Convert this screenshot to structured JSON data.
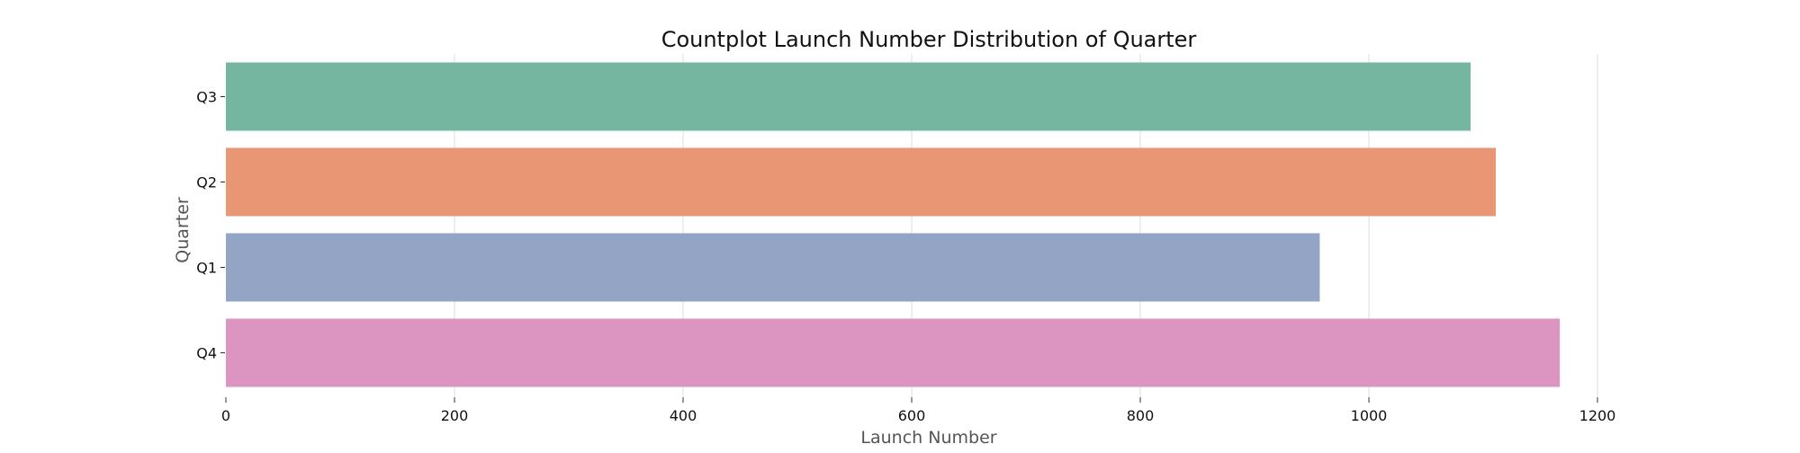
{
  "chart_data": {
    "type": "bar",
    "orientation": "horizontal",
    "title": "Countplot Launch Number Distribution of Quarter",
    "xlabel": "Launch Number",
    "ylabel": "Quarter",
    "categories": [
      "Q3",
      "Q2",
      "Q1",
      "Q4"
    ],
    "values": [
      1089,
      1111,
      957,
      1167
    ],
    "colors": [
      "#75b6a1",
      "#e99675",
      "#94a4c4",
      "#dc95c0"
    ],
    "xlim": [
      0,
      1200
    ],
    "xticks": [
      0,
      200,
      400,
      600,
      800,
      1000,
      1200
    ],
    "grid": "vertical",
    "legend": "none"
  }
}
